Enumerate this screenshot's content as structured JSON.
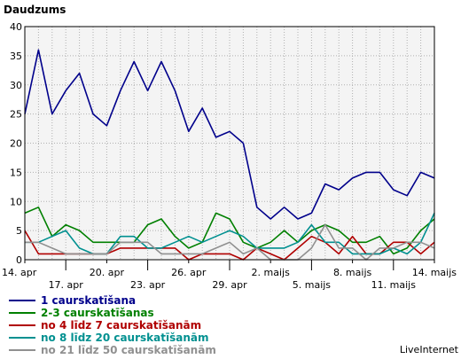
{
  "chart_data": {
    "type": "line",
    "title": "Daudzums",
    "ylim": [
      0,
      40
    ],
    "y_ticks": [
      0,
      5,
      10,
      15,
      20,
      25,
      30,
      35,
      40
    ],
    "grid": true,
    "legend_position": "bottom-left",
    "x_tick_labels": [
      {
        "index": 0,
        "label": "14. apr",
        "row": 1
      },
      {
        "index": 3,
        "label": "17. apr",
        "row": 2
      },
      {
        "index": 6,
        "label": "20. apr",
        "row": 1
      },
      {
        "index": 9,
        "label": "23. apr",
        "row": 2
      },
      {
        "index": 12,
        "label": "26. apr",
        "row": 1
      },
      {
        "index": 15,
        "label": "29. apr",
        "row": 2
      },
      {
        "index": 18,
        "label": "2. maijs",
        "row": 1
      },
      {
        "index": 21,
        "label": "5. maijs",
        "row": 2
      },
      {
        "index": 24,
        "label": "8. maijs",
        "row": 1
      },
      {
        "index": 27,
        "label": "11. maijs",
        "row": 2
      },
      {
        "index": 30,
        "label": "14. maijs",
        "row": 1
      }
    ],
    "point_count": 31,
    "series": [
      {
        "name": "1 caurskatīšana",
        "color": "#00008b",
        "values": [
          25,
          36,
          25,
          29,
          32,
          25,
          23,
          29,
          34,
          29,
          34,
          29,
          22,
          26,
          21,
          22,
          20,
          9,
          7,
          9,
          7,
          8,
          13,
          12,
          14,
          15,
          15,
          12,
          11,
          15,
          14
        ]
      },
      {
        "name": "2-3 caurskatīšanas",
        "color": "#008000",
        "values": [
          8,
          9,
          4,
          6,
          5,
          3,
          3,
          3,
          3,
          6,
          7,
          4,
          2,
          3,
          8,
          7,
          3,
          2,
          3,
          5,
          3,
          5,
          6,
          5,
          3,
          3,
          4,
          1,
          2,
          5,
          7
        ]
      },
      {
        "name": "no 4 līdz 7 caurskatīšanām",
        "color": "#b00000",
        "values": [
          5,
          1,
          1,
          1,
          1,
          1,
          1,
          2,
          2,
          2,
          2,
          2,
          0,
          1,
          1,
          1,
          0,
          2,
          1,
          0,
          2,
          4,
          3,
          1,
          4,
          1,
          1,
          3,
          3,
          1,
          3
        ]
      },
      {
        "name": "no 8 līdz 20 caurskatīšanām",
        "color": "#009090",
        "values": [
          3,
          3,
          4,
          5,
          2,
          1,
          1,
          4,
          4,
          2,
          2,
          3,
          4,
          3,
          4,
          5,
          4,
          2,
          2,
          2,
          3,
          6,
          3,
          3,
          1,
          1,
          1,
          2,
          1,
          3,
          8
        ]
      },
      {
        "name": "no 21 līdz 50 caurskatīšanām",
        "color": "#909090",
        "values": [
          3,
          3,
          2,
          1,
          1,
          1,
          1,
          3,
          3,
          3,
          1,
          1,
          1,
          1,
          2,
          3,
          1,
          2,
          0,
          0,
          0,
          2,
          6,
          2,
          2,
          0,
          2,
          2,
          3,
          3,
          2
        ]
      }
    ]
  },
  "branding": {
    "text": "LiveInternet"
  }
}
